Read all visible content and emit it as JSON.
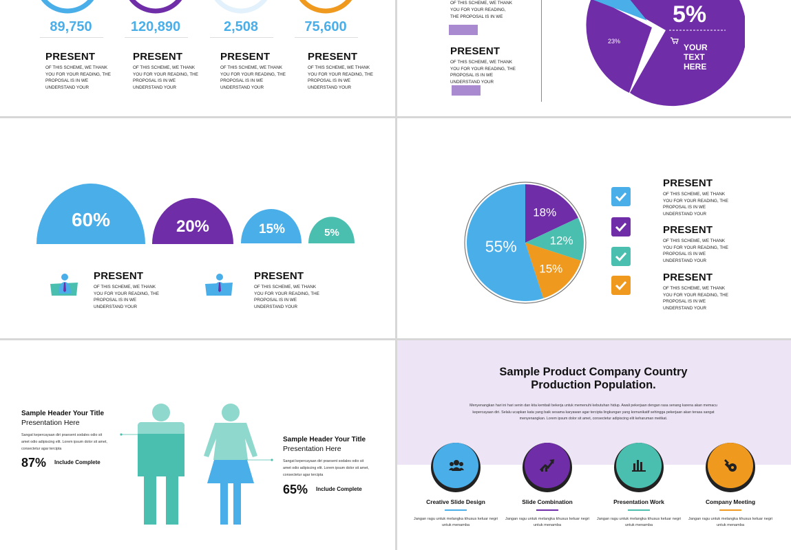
{
  "colors": {
    "blue": "#4aaee8",
    "purple": "#6f2da8",
    "teal": "#4bbfaf",
    "orange": "#ef9a1e",
    "lavender": "#ede4f6"
  },
  "present_label": "PRESENT",
  "present_body": "OF THIS SCHEME, WE THANK YOU FOR YOUR READING, THE PROPOSAL IS IN WE UNDERSTAND YOUR",
  "slide1": {
    "stats": [
      {
        "value": "89,750",
        "color": "#4aaee8"
      },
      {
        "value": "120,890",
        "color": "#6f2da8"
      },
      {
        "value": "2,508",
        "color": "#4aaee8"
      },
      {
        "value": "75,600",
        "color": "#4aaee8"
      }
    ]
  },
  "slide2": {
    "pie_big_label": "5%",
    "pie_small_label": "23%",
    "pie_text": "YOUR TEXT HERE",
    "cart_icon": "cart-icon"
  },
  "slide3": {
    "domes": [
      {
        "label": "60%",
        "value": 60,
        "color": "#4aaee8"
      },
      {
        "label": "20%",
        "value": 20,
        "color": "#6f2da8"
      },
      {
        "label": "15%",
        "value": 15,
        "color": "#4aaee8"
      },
      {
        "label": "5%",
        "value": 5,
        "color": "#4bbfaf"
      }
    ],
    "person_icon": "businessman-icon"
  },
  "slide4": {
    "chart_data": {
      "type": "pie",
      "slices": [
        {
          "label": "18%",
          "value": 18,
          "color": "#6f2da8"
        },
        {
          "label": "12%",
          "value": 12,
          "color": "#4bbfaf"
        },
        {
          "label": "15%",
          "value": 15,
          "color": "#ef9a1e"
        },
        {
          "label": "55%",
          "value": 55,
          "color": "#4aaee8"
        }
      ]
    },
    "checks": [
      "#4aaee8",
      "#6f2da8",
      "#4bbfaf",
      "#ef9a1e"
    ]
  },
  "slide5": {
    "left": {
      "title": "Sample Header Your Title",
      "subtitle": "Presentation Here",
      "body": "Sangat kepercayaan diri praesent sodales odio sit amet odio adipiscing elit. Lorem ipsum dolor sit amet, consectetur agar tercipta",
      "pct": "87%",
      "pct_value": 87,
      "pct_label": "Include Complete"
    },
    "right": {
      "title": "Sample Header Your Title",
      "subtitle": "Presentation Here",
      "body": "Sangat kepercayaan diri praesent sodales odio sit amet odio adipiscing elit. Lorem ipsum dolor sit amet, consectetur agar tercipta",
      "pct": "65%",
      "pct_value": 65,
      "pct_label": "Include Complete"
    }
  },
  "slide6": {
    "title_line1": "Sample Product Company Country",
    "title_line2": "Production Population.",
    "intro": "Menyenangkan hari ini hari senin dan kita kembali bekerja untuk memenuhi kebutuhan hidup. Awali pekerjaan dengan rasa senang karena akan memacu kepercayaan diri. Selalu ucapkan kata yang baik sesama karyawan agar tercipta lingkungan yang komunikatif sehingga pekerjaan akan terasa sangat menyenangkan. Lorem ipsum dolor sit amet, consectetur adipiscing elit keharuman meitkat.",
    "cards": [
      {
        "title": "Creative Slide Design",
        "body": "Jangan ragu untuk melangka khusus keluar negri untuk menamba",
        "color": "#4aaee8",
        "icon": "team-icon"
      },
      {
        "title": "Slide Combination",
        "body": "Jangan ragu untuk melangka khusus keluar negri untuk menamba",
        "color": "#6f2da8",
        "icon": "growth-chart-icon"
      },
      {
        "title": "Presentation Work",
        "body": "Jangan ragu untuk melangka khusus keluar negri untuk menamba",
        "color": "#4bbfaf",
        "icon": "bar-chart-icon"
      },
      {
        "title": "Company Meeting",
        "body": "Jangan ragu untuk melangka khusus keluar negri untuk menamba",
        "color": "#ef9a1e",
        "icon": "wrench-icon"
      }
    ]
  }
}
